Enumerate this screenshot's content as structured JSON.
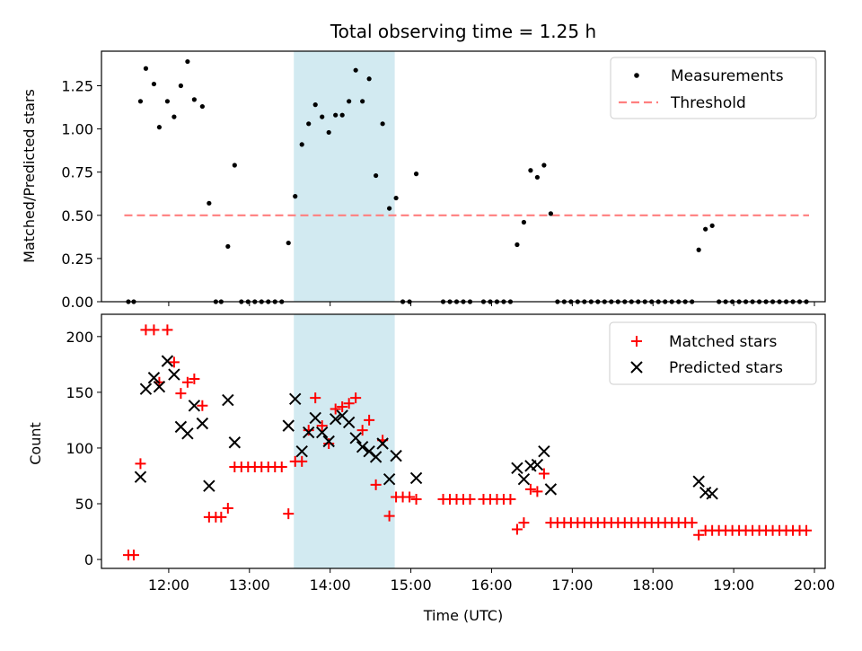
{
  "chart_data": [
    {
      "type": "scatter",
      "title": "Total observing time = 1.25 h",
      "xlabel": "",
      "ylabel": "Matched/Predicted stars",
      "xlim": [
        "11:10",
        "20:08"
      ],
      "ylim": [
        0,
        1.45
      ],
      "x_ticks": [
        "12:00",
        "13:00",
        "14:00",
        "15:00",
        "16:00",
        "17:00",
        "18:00",
        "19:00",
        "20:00"
      ],
      "y_ticks": [
        "0.00",
        "0.25",
        "0.50",
        "0.75",
        "1.00",
        "1.25"
      ],
      "highlight_span": {
        "x": [
          "13:33",
          "14:48"
        ],
        "color": "#add8e6"
      },
      "legend": {
        "position": "top-right",
        "entries": [
          "Measurements",
          "Threshold"
        ]
      },
      "series": [
        {
          "name": "Measurements",
          "marker": "dot",
          "color": "#000000",
          "points": [
            [
              "11:30",
              0
            ],
            [
              "11:34",
              0
            ],
            [
              "11:39",
              1.16
            ],
            [
              "11:43",
              1.35
            ],
            [
              "11:49",
              1.26
            ],
            [
              "11:53",
              1.01
            ],
            [
              "11:59",
              1.16
            ],
            [
              "12:04",
              1.07
            ],
            [
              "12:09",
              1.25
            ],
            [
              "12:14",
              1.39
            ],
            [
              "12:19",
              1.17
            ],
            [
              "12:25",
              1.13
            ],
            [
              "12:30",
              0.57
            ],
            [
              "12:35",
              0
            ],
            [
              "12:39",
              0
            ],
            [
              "12:44",
              0.32
            ],
            [
              "12:49",
              0.79
            ],
            [
              "12:54",
              0
            ],
            [
              "12:59",
              0
            ],
            [
              "13:04",
              0
            ],
            [
              "13:09",
              0
            ],
            [
              "13:14",
              0
            ],
            [
              "13:19",
              0
            ],
            [
              "13:24",
              0
            ],
            [
              "13:29",
              0.34
            ],
            [
              "13:34",
              0.61
            ],
            [
              "13:39",
              0.91
            ],
            [
              "13:44",
              1.03
            ],
            [
              "13:49",
              1.14
            ],
            [
              "13:54",
              1.07
            ],
            [
              "13:59",
              0.98
            ],
            [
              "14:04",
              1.08
            ],
            [
              "14:09",
              1.08
            ],
            [
              "14:14",
              1.16
            ],
            [
              "14:19",
              1.34
            ],
            [
              "14:24",
              1.16
            ],
            [
              "14:29",
              1.29
            ],
            [
              "14:34",
              0.73
            ],
            [
              "14:39",
              1.03
            ],
            [
              "14:44",
              0.54
            ],
            [
              "14:49",
              0.6
            ],
            [
              "14:54",
              0
            ],
            [
              "14:59",
              0
            ],
            [
              "15:04",
              0.74
            ],
            [
              "15:24",
              0
            ],
            [
              "15:29",
              0
            ],
            [
              "15:34",
              0
            ],
            [
              "15:39",
              0
            ],
            [
              "15:44",
              0
            ],
            [
              "15:54",
              0
            ],
            [
              "15:59",
              0
            ],
            [
              "16:04",
              0
            ],
            [
              "16:09",
              0
            ],
            [
              "16:14",
              0
            ],
            [
              "16:19",
              0.33
            ],
            [
              "16:24",
              0.46
            ],
            [
              "16:29",
              0.76
            ],
            [
              "16:34",
              0.72
            ],
            [
              "16:39",
              0.79
            ],
            [
              "16:44",
              0.51
            ],
            [
              "16:49",
              0
            ],
            [
              "16:54",
              0
            ],
            [
              "16:59",
              0
            ],
            [
              "17:04",
              0
            ],
            [
              "17:09",
              0
            ],
            [
              "17:14",
              0
            ],
            [
              "17:19",
              0
            ],
            [
              "17:24",
              0
            ],
            [
              "17:29",
              0
            ],
            [
              "17:34",
              0
            ],
            [
              "17:39",
              0
            ],
            [
              "17:44",
              0
            ],
            [
              "17:49",
              0
            ],
            [
              "17:54",
              0
            ],
            [
              "17:59",
              0
            ],
            [
              "18:04",
              0
            ],
            [
              "18:09",
              0
            ],
            [
              "18:14",
              0
            ],
            [
              "18:19",
              0
            ],
            [
              "18:24",
              0
            ],
            [
              "18:29",
              0
            ],
            [
              "18:34",
              0.3
            ],
            [
              "18:39",
              0.42
            ],
            [
              "18:44",
              0.44
            ],
            [
              "18:49",
              0
            ],
            [
              "18:54",
              0
            ],
            [
              "18:59",
              0
            ],
            [
              "19:04",
              0
            ],
            [
              "19:09",
              0
            ],
            [
              "19:14",
              0
            ],
            [
              "19:19",
              0
            ],
            [
              "19:24",
              0
            ],
            [
              "19:29",
              0
            ],
            [
              "19:34",
              0
            ],
            [
              "19:39",
              0
            ],
            [
              "19:44",
              0
            ],
            [
              "19:49",
              0
            ],
            [
              "19:54",
              0
            ]
          ]
        },
        {
          "name": "Threshold",
          "style": "dashed",
          "color": "#ff7f7f",
          "points": [
            [
              "11:27",
              0.5
            ],
            [
              "19:56",
              0.5
            ]
          ]
        }
      ]
    },
    {
      "type": "scatter",
      "title": "",
      "xlabel": "Time (UTC)",
      "ylabel": "Count",
      "xlim": [
        "11:10",
        "20:08"
      ],
      "ylim": [
        -8,
        220
      ],
      "x_ticks": [
        "12:00",
        "13:00",
        "14:00",
        "15:00",
        "16:00",
        "17:00",
        "18:00",
        "19:00",
        "20:00"
      ],
      "y_ticks": [
        "0",
        "50",
        "100",
        "150",
        "200"
      ],
      "highlight_span": {
        "x": [
          "13:33",
          "14:48"
        ],
        "color": "#add8e6"
      },
      "legend": {
        "position": "top-right",
        "entries": [
          "Matched stars",
          "Predicted stars"
        ]
      },
      "series": [
        {
          "name": "Matched stars",
          "marker": "plus",
          "color": "#ff0000",
          "points": [
            [
              "11:30",
              4
            ],
            [
              "11:34",
              4
            ],
            [
              "11:39",
              86
            ],
            [
              "11:43",
              206
            ],
            [
              "11:49",
              206
            ],
            [
              "11:53",
              159
            ],
            [
              "11:59",
              206
            ],
            [
              "12:04",
              177
            ],
            [
              "12:09",
              149
            ],
            [
              "12:14",
              159
            ],
            [
              "12:19",
              162
            ],
            [
              "12:25",
              138
            ],
            [
              "12:30",
              38
            ],
            [
              "12:35",
              38
            ],
            [
              "12:39",
              38
            ],
            [
              "12:44",
              46
            ],
            [
              "12:49",
              83
            ],
            [
              "12:54",
              83
            ],
            [
              "12:59",
              83
            ],
            [
              "13:04",
              83
            ],
            [
              "13:09",
              83
            ],
            [
              "13:14",
              83
            ],
            [
              "13:19",
              83
            ],
            [
              "13:24",
              83
            ],
            [
              "13:29",
              41
            ],
            [
              "13:34",
              88
            ],
            [
              "13:39",
              88
            ],
            [
              "13:44",
              116
            ],
            [
              "13:49",
              145
            ],
            [
              "13:54",
              120
            ],
            [
              "13:59",
              104
            ],
            [
              "14:04",
              135
            ],
            [
              "14:09",
              137
            ],
            [
              "14:14",
              140
            ],
            [
              "14:19",
              145
            ],
            [
              "14:24",
              116
            ],
            [
              "14:29",
              125
            ],
            [
              "14:34",
              67
            ],
            [
              "14:39",
              107
            ],
            [
              "14:44",
              39
            ],
            [
              "14:49",
              56
            ],
            [
              "14:54",
              56
            ],
            [
              "14:59",
              56
            ],
            [
              "15:04",
              54
            ],
            [
              "15:24",
              54
            ],
            [
              "15:29",
              54
            ],
            [
              "15:34",
              54
            ],
            [
              "15:39",
              54
            ],
            [
              "15:44",
              54
            ],
            [
              "15:54",
              54
            ],
            [
              "15:59",
              54
            ],
            [
              "16:04",
              54
            ],
            [
              "16:09",
              54
            ],
            [
              "16:14",
              54
            ],
            [
              "16:19",
              27
            ],
            [
              "16:24",
              33
            ],
            [
              "16:29",
              63
            ],
            [
              "16:34",
              61
            ],
            [
              "16:39",
              77
            ],
            [
              "16:44",
              33
            ],
            [
              "16:49",
              33
            ],
            [
              "16:54",
              33
            ],
            [
              "16:59",
              33
            ],
            [
              "17:04",
              33
            ],
            [
              "17:09",
              33
            ],
            [
              "17:14",
              33
            ],
            [
              "17:19",
              33
            ],
            [
              "17:24",
              33
            ],
            [
              "17:29",
              33
            ],
            [
              "17:34",
              33
            ],
            [
              "17:39",
              33
            ],
            [
              "17:44",
              33
            ],
            [
              "17:49",
              33
            ],
            [
              "17:54",
              33
            ],
            [
              "17:59",
              33
            ],
            [
              "18:04",
              33
            ],
            [
              "18:09",
              33
            ],
            [
              "18:14",
              33
            ],
            [
              "18:19",
              33
            ],
            [
              "18:24",
              33
            ],
            [
              "18:29",
              33
            ],
            [
              "18:34",
              22
            ],
            [
              "18:39",
              26
            ],
            [
              "18:44",
              26
            ],
            [
              "18:49",
              26
            ],
            [
              "18:54",
              26
            ],
            [
              "18:59",
              26
            ],
            [
              "19:04",
              26
            ],
            [
              "19:09",
              26
            ],
            [
              "19:14",
              26
            ],
            [
              "19:19",
              26
            ],
            [
              "19:24",
              26
            ],
            [
              "19:29",
              26
            ],
            [
              "19:34",
              26
            ],
            [
              "19:39",
              26
            ],
            [
              "19:44",
              26
            ],
            [
              "19:49",
              26
            ],
            [
              "19:54",
              26
            ]
          ]
        },
        {
          "name": "Predicted stars",
          "marker": "x",
          "color": "#000000",
          "points": [
            [
              "11:39",
              74
            ],
            [
              "11:43",
              153
            ],
            [
              "11:49",
              163
            ],
            [
              "11:53",
              155
            ],
            [
              "11:59",
              178
            ],
            [
              "12:04",
              166
            ],
            [
              "12:09",
              119
            ],
            [
              "12:14",
              113
            ],
            [
              "12:19",
              138
            ],
            [
              "12:25",
              122
            ],
            [
              "12:30",
              66
            ],
            [
              "12:44",
              143
            ],
            [
              "12:49",
              105
            ],
            [
              "13:29",
              120
            ],
            [
              "13:34",
              144
            ],
            [
              "13:39",
              97
            ],
            [
              "13:44",
              114
            ],
            [
              "13:49",
              127
            ],
            [
              "13:54",
              114
            ],
            [
              "13:59",
              106
            ],
            [
              "14:04",
              126
            ],
            [
              "14:09",
              129
            ],
            [
              "14:14",
              123
            ],
            [
              "14:19",
              109
            ],
            [
              "14:24",
              101
            ],
            [
              "14:29",
              97
            ],
            [
              "14:34",
              92
            ],
            [
              "14:39",
              104
            ],
            [
              "14:44",
              72
            ],
            [
              "14:49",
              93
            ],
            [
              "15:04",
              73
            ],
            [
              "16:19",
              82
            ],
            [
              "16:24",
              72
            ],
            [
              "16:29",
              84
            ],
            [
              "16:34",
              85
            ],
            [
              "16:39",
              97
            ],
            [
              "16:44",
              63
            ],
            [
              "18:34",
              70
            ],
            [
              "18:39",
              60
            ],
            [
              "18:44",
              59
            ]
          ]
        }
      ]
    }
  ]
}
